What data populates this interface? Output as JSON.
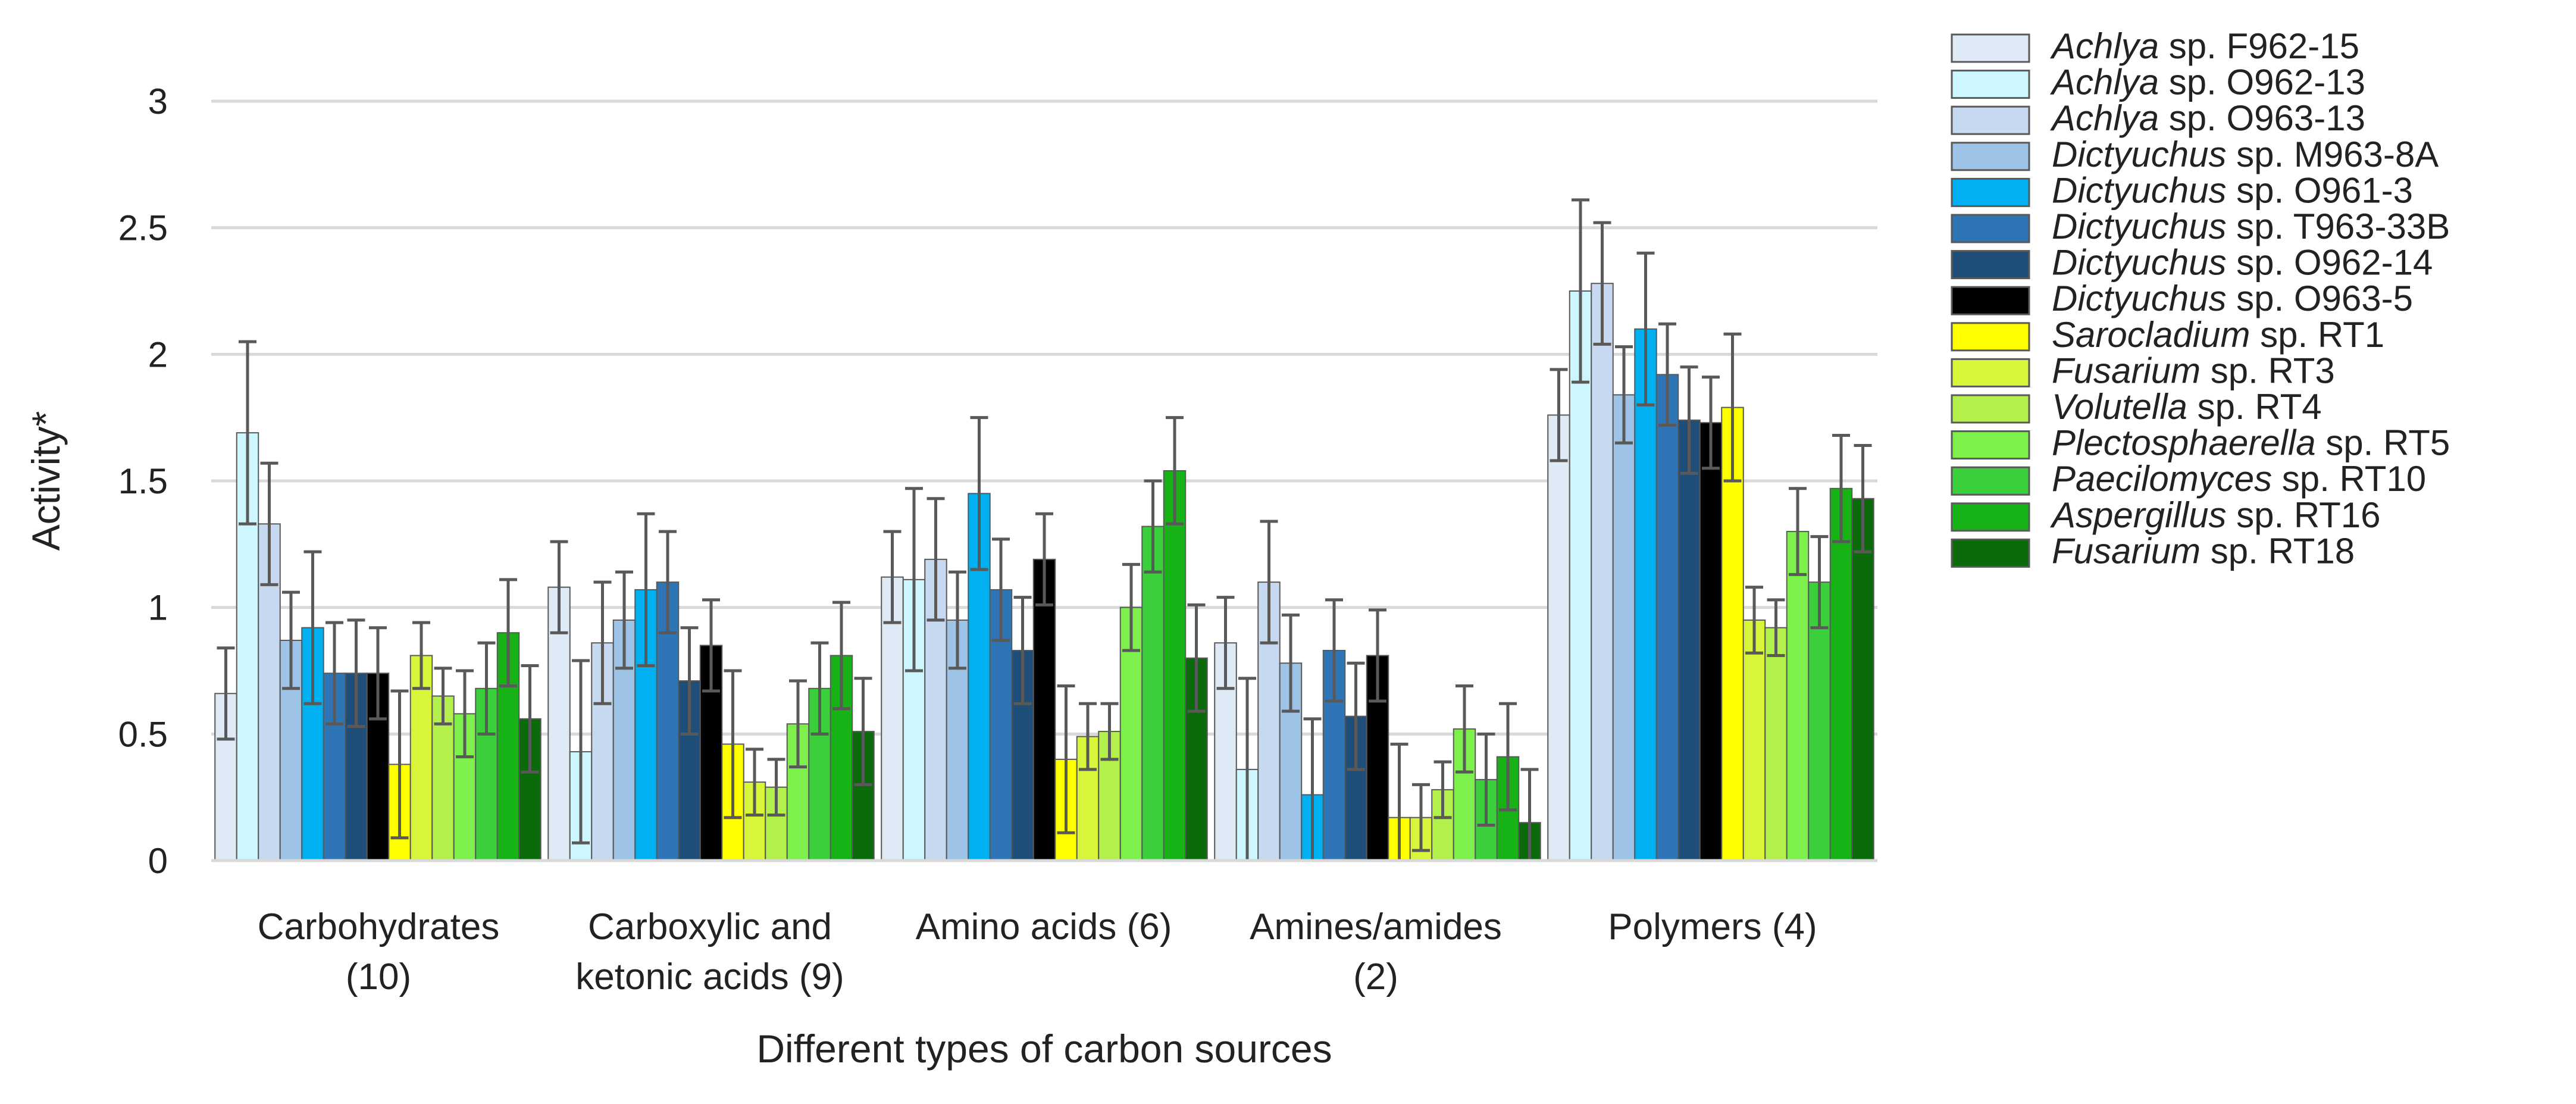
{
  "chart_data": {
    "type": "bar",
    "title": "",
    "xlabel": "Different types of carbon sources",
    "ylabel": "Activity*",
    "ylim": [
      0,
      3
    ],
    "yticks": [
      {
        "value": 0,
        "label": "0"
      },
      {
        "value": 0.5,
        "label": "0.5"
      },
      {
        "value": 1,
        "label": "1"
      },
      {
        "value": 1.5,
        "label": "1.5"
      },
      {
        "value": 2,
        "label": "2"
      },
      {
        "value": 2.5,
        "label": "2.5"
      },
      {
        "value": 3,
        "label": "3"
      }
    ],
    "grid": true,
    "legend_position": "right",
    "categories": [
      [
        "Carbohydrates",
        "(10)"
      ],
      [
        "Carboxylic and",
        "ketonic acids (9)"
      ],
      [
        "Amino acids (6)"
      ],
      [
        "Amines/amides",
        "(2)"
      ],
      [
        "Polymers (4)"
      ]
    ],
    "series": [
      {
        "genus": "Achlya",
        "rest": " sp. F962-15",
        "color": "#deebf7",
        "values": [
          0.66,
          1.08,
          1.12,
          0.86,
          1.76
        ],
        "errors": [
          0.18,
          0.18,
          0.18,
          0.18,
          0.18
        ]
      },
      {
        "genus": "Achlya",
        "rest": " sp. O962-13",
        "color": "#ccf7ff",
        "values": [
          1.69,
          0.43,
          1.11,
          0.36,
          2.25
        ],
        "errors": [
          0.36,
          0.36,
          0.36,
          0.36,
          0.36
        ]
      },
      {
        "genus": "Achlya",
        "rest": " sp. O963-13",
        "color": "#c6d9f0",
        "values": [
          1.33,
          0.86,
          1.19,
          1.1,
          2.28
        ],
        "errors": [
          0.24,
          0.24,
          0.24,
          0.24,
          0.24
        ]
      },
      {
        "genus": "Dictyuchus",
        "rest": " sp. M963-8A",
        "color": "#9dc3e6",
        "values": [
          0.87,
          0.95,
          0.95,
          0.78,
          1.84
        ],
        "errors": [
          0.19,
          0.19,
          0.19,
          0.19,
          0.19
        ]
      },
      {
        "genus": "Dictyuchus",
        "rest": " sp. O961-3",
        "color": "#00b0f0",
        "values": [
          0.92,
          1.07,
          1.45,
          0.26,
          2.1
        ],
        "errors": [
          0.3,
          0.3,
          0.3,
          0.3,
          0.3
        ]
      },
      {
        "genus": "Dictyuchus",
        "rest": " sp. T963-33B",
        "color": "#2e75b6",
        "values": [
          0.74,
          1.1,
          1.07,
          0.83,
          1.92
        ],
        "errors": [
          0.2,
          0.2,
          0.2,
          0.2,
          0.2
        ]
      },
      {
        "genus": "Dictyuchus",
        "rest": " sp. O962-14",
        "color": "#1f4e79",
        "values": [
          0.74,
          0.71,
          0.83,
          0.57,
          1.74
        ],
        "errors": [
          0.21,
          0.21,
          0.21,
          0.21,
          0.21
        ]
      },
      {
        "genus": "Dictyuchus",
        "rest": " sp. O963-5",
        "color": "#000000",
        "values": [
          0.74,
          0.85,
          1.19,
          0.81,
          1.73
        ],
        "errors": [
          0.18,
          0.18,
          0.18,
          0.18,
          0.18
        ]
      },
      {
        "genus": "Sarocladium",
        "rest": " sp. RT1",
        "color": "#ffff00",
        "values": [
          0.38,
          0.46,
          0.4,
          0.17,
          1.79
        ],
        "errors": [
          0.29,
          0.29,
          0.29,
          0.29,
          0.29
        ]
      },
      {
        "genus": "Fusarium",
        "rest": " sp. RT3",
        "color": "#d9f53a",
        "values": [
          0.81,
          0.31,
          0.49,
          0.17,
          0.95
        ],
        "errors": [
          0.13,
          0.13,
          0.13,
          0.13,
          0.13
        ]
      },
      {
        "genus": "Volutella",
        "rest": " sp. RT4",
        "color": "#b4f04b",
        "values": [
          0.65,
          0.29,
          0.51,
          0.28,
          0.92
        ],
        "errors": [
          0.11,
          0.11,
          0.11,
          0.11,
          0.11
        ]
      },
      {
        "genus": "Plectosphaerella",
        "rest": " sp. RT5",
        "color": "#7ef04b",
        "values": [
          0.58,
          0.54,
          1.0,
          0.52,
          1.3
        ],
        "errors": [
          0.17,
          0.17,
          0.17,
          0.17,
          0.17
        ]
      },
      {
        "genus": "Paecilomyces",
        "rest": " sp. RT10",
        "color": "#3ccf3c",
        "values": [
          0.68,
          0.68,
          1.32,
          0.32,
          1.1
        ],
        "errors": [
          0.18,
          0.18,
          0.18,
          0.18,
          0.18
        ]
      },
      {
        "genus": "Aspergillus",
        "rest": " sp. RT16",
        "color": "#16b216",
        "values": [
          0.9,
          0.81,
          1.54,
          0.41,
          1.47
        ],
        "errors": [
          0.21,
          0.21,
          0.21,
          0.21,
          0.21
        ]
      },
      {
        "genus": "Fusarium",
        "rest": " sp. RT18",
        "color": "#0b6b0b",
        "values": [
          0.56,
          0.51,
          0.8,
          0.15,
          1.43
        ],
        "errors": [
          0.21,
          0.21,
          0.21,
          0.21,
          0.21
        ]
      }
    ]
  }
}
